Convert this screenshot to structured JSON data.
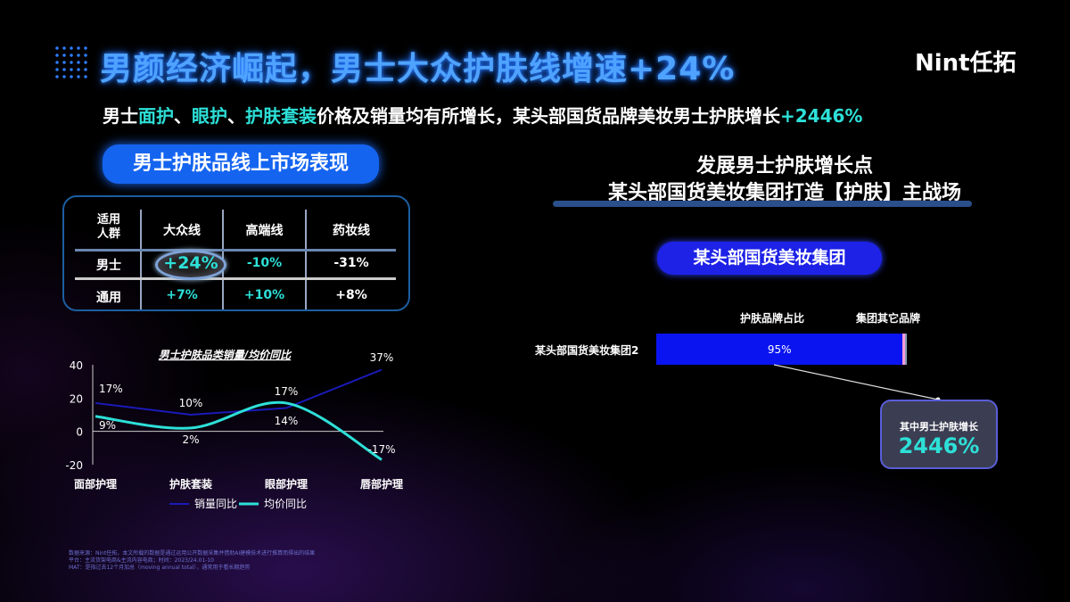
{
  "header": {
    "title": "男颜经济崛起，男士大众护肤线增速+24%",
    "logo": "Nint任拓",
    "subtitle_parts": [
      {
        "t": "男士",
        "hl": false
      },
      {
        "t": "面护",
        "hl": true
      },
      {
        "t": "、",
        "hl": false
      },
      {
        "t": "眼护",
        "hl": true
      },
      {
        "t": "、",
        "hl": false
      },
      {
        "t": "护肤套装",
        "hl": true
      },
      {
        "t": "价格及销量均有所增长，某头部国货品牌美妆男士护肤增长",
        "hl": false
      },
      {
        "t": "+2446%",
        "hl": true
      }
    ]
  },
  "left": {
    "pill": "男士护肤品线上市场表现",
    "table": {
      "corner": "适用人群",
      "cols": [
        "大众线",
        "高端线",
        "药妆线"
      ],
      "rows": [
        {
          "label": "男士",
          "values": [
            "+24%",
            "-10%",
            "-31%"
          ]
        },
        {
          "label": "通用",
          "values": [
            "+7%",
            "+10%",
            "+8%"
          ]
        }
      ]
    }
  },
  "chart_data": {
    "type": "line",
    "title": "男士护肤品类销量/均价同比",
    "categories": [
      "面部护理",
      "护肤套装",
      "眼部护理",
      "唇部护理"
    ],
    "ylim": [
      -20,
      40
    ],
    "yticks": [
      40,
      20,
      0,
      -20
    ],
    "legend": "bottom",
    "series": [
      {
        "name": "销量同比",
        "color": "#1a1ab8",
        "values": [
          17,
          10,
          14,
          37
        ],
        "labels": [
          "17%",
          "10%",
          "14%",
          "37%"
        ]
      },
      {
        "name": "均价同比",
        "color": "#2de0d8",
        "values": [
          9,
          2,
          17,
          -17
        ],
        "labels": [
          "9%",
          "2%",
          "17%",
          "-17%"
        ]
      }
    ]
  },
  "right": {
    "title1": "发展男士护肤增长点",
    "title2": "某头部国货美妆集团打造【护肤】主战场",
    "pill": "某头部国货美妆集团",
    "bar": {
      "category": "某头部国货美妆集团2",
      "legend1": "护肤品牌占比",
      "legend2": "集团其它品牌",
      "value": 95,
      "value_label": "95%",
      "colors": [
        "#0a14f0",
        "#f79ad8",
        "#8a9ab8"
      ]
    },
    "callout": {
      "label": "其中男士护肤增长",
      "value": "2446%"
    }
  },
  "footnote": [
    "数据来源：Nint任拓，本文所载的数据是通过运用公开数据采集并借助AI建模技术进行推算而得出的结果",
    "平台：主流货架电商&主流内容电商；时间：2023/24.01-10",
    "MAT：是指过去12个月加总（moving annual total），通常用于看长期趋势"
  ]
}
